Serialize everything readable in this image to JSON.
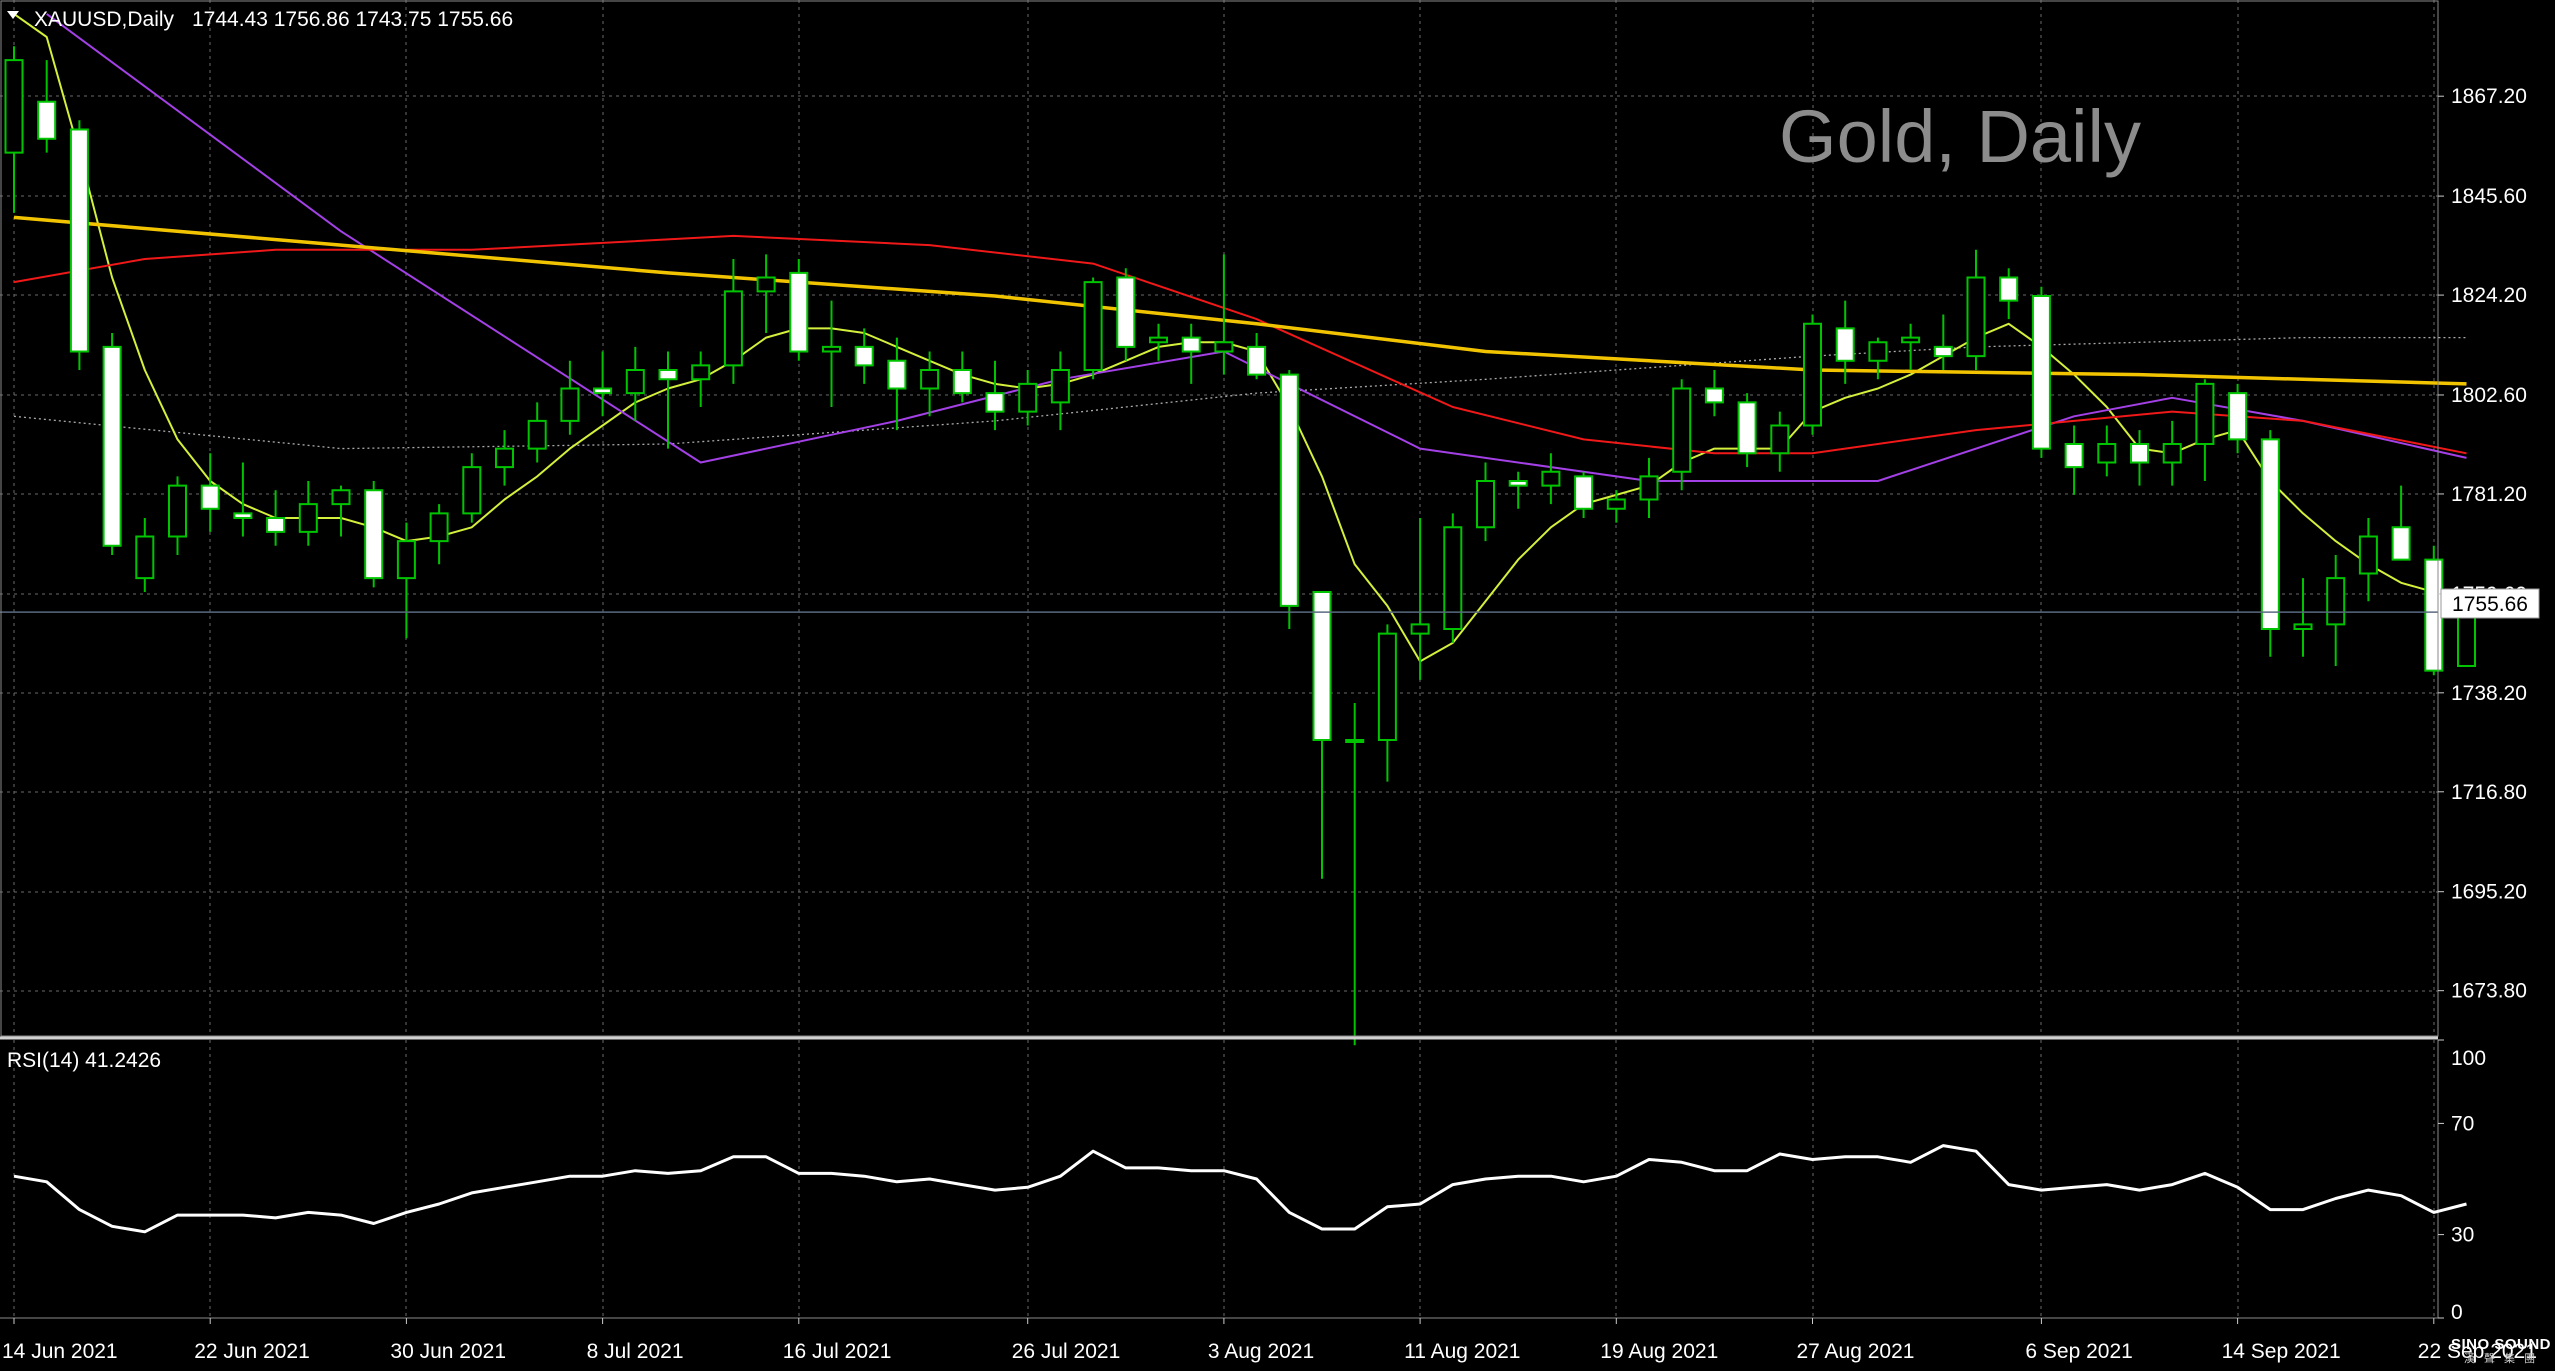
{
  "header": {
    "symbol": "XAUUSD,Daily",
    "ohlc": "1744.43 1756.86 1743.75 1755.66"
  },
  "watermark": "Gold, Daily",
  "rsi_label": "RSI(14) 41.2426",
  "current_price_label": "1755.66",
  "logo": {
    "line1": "SINO SOUND",
    "line2": "漢 聲 集 團"
  },
  "colors": {
    "background": "#000000",
    "grid": "#6a6a6a",
    "candle_up": "#00c400",
    "candle_down_fill": "#ffffff",
    "ma_fast": "#d4ef3c",
    "ma_purple": "#a340e6",
    "ma_red": "#f01818",
    "ma_yellow": "#f2c400",
    "ma_dotted": "#aaaaaa",
    "rsi": "#ffffff",
    "price_line": "#5a6a80"
  },
  "chart_data": [
    {
      "type": "candlestick",
      "title": "XAUUSD,Daily",
      "x_tick_labels": [
        "14 Jun 2021",
        "22 Jun 2021",
        "30 Jun 2021",
        "8 Jul 2021",
        "16 Jul 2021",
        "26 Jul 2021",
        "3 Aug 2021",
        "11 Aug 2021",
        "19 Aug 2021",
        "27 Aug 2021",
        "6 Sep 2021",
        "14 Sep 2021",
        "22 Sep 2021"
      ],
      "x_tick_index": [
        0,
        6,
        12,
        18,
        24,
        31,
        37,
        43,
        49,
        55,
        62,
        68,
        74
      ],
      "y_ticks": [
        1673.8,
        1695.2,
        1716.8,
        1738.2,
        1759.6,
        1781.2,
        1802.6,
        1824.2,
        1845.6,
        1867.2
      ],
      "ylim": [
        1664.0,
        1888.0
      ],
      "last_price": 1755.66,
      "ohlc": [
        [
          1855,
          1878,
          1842,
          1875
        ],
        [
          1866,
          1875,
          1855,
          1858
        ],
        [
          1860,
          1862,
          1808,
          1812
        ],
        [
          1813,
          1816,
          1768,
          1770
        ],
        [
          1763,
          1776,
          1760,
          1772
        ],
        [
          1772,
          1785,
          1768,
          1783
        ],
        [
          1783,
          1790,
          1773,
          1778
        ],
        [
          1777,
          1788,
          1772,
          1776
        ],
        [
          1776,
          1782,
          1770,
          1773
        ],
        [
          1773,
          1784,
          1770,
          1779
        ],
        [
          1779,
          1783,
          1772,
          1782
        ],
        [
          1782,
          1784,
          1761,
          1763
        ],
        [
          1763,
          1775,
          1750,
          1771
        ],
        [
          1771,
          1779,
          1766,
          1777
        ],
        [
          1777,
          1790,
          1775,
          1787
        ],
        [
          1787,
          1795,
          1783,
          1791
        ],
        [
          1791,
          1801,
          1788,
          1797
        ],
        [
          1797,
          1810,
          1794,
          1804
        ],
        [
          1804,
          1812,
          1798,
          1803
        ],
        [
          1803,
          1813,
          1797,
          1808
        ],
        [
          1808,
          1812,
          1791,
          1806
        ],
        [
          1806,
          1812,
          1800,
          1809
        ],
        [
          1809,
          1832,
          1805,
          1825
        ],
        [
          1825,
          1833,
          1816,
          1828
        ],
        [
          1829,
          1832,
          1810,
          1812
        ],
        [
          1812,
          1823,
          1800,
          1813
        ],
        [
          1813,
          1817,
          1805,
          1809
        ],
        [
          1810,
          1815,
          1795,
          1804
        ],
        [
          1804,
          1812,
          1798,
          1808
        ],
        [
          1808,
          1812,
          1801,
          1803
        ],
        [
          1803,
          1810,
          1795,
          1799
        ],
        [
          1799,
          1808,
          1796,
          1805
        ],
        [
          1801,
          1812,
          1795,
          1808
        ],
        [
          1808,
          1828,
          1806,
          1827
        ],
        [
          1828,
          1830,
          1810,
          1813
        ],
        [
          1814,
          1818,
          1810,
          1815
        ],
        [
          1815,
          1818,
          1805,
          1812
        ],
        [
          1812,
          1833,
          1807,
          1814
        ],
        [
          1813,
          1816,
          1806,
          1807
        ],
        [
          1807,
          1808,
          1752,
          1757
        ],
        [
          1760,
          1760,
          1698,
          1728
        ],
        [
          1728,
          1736,
          1662,
          1728
        ],
        [
          1728,
          1753,
          1719,
          1751
        ],
        [
          1751,
          1776,
          1741,
          1753
        ],
        [
          1752,
          1777,
          1749,
          1774
        ],
        [
          1774,
          1788,
          1771,
          1784
        ],
        [
          1784,
          1786,
          1778,
          1783
        ],
        [
          1783,
          1790,
          1779,
          1786
        ],
        [
          1785,
          1786,
          1776,
          1778
        ],
        [
          1778,
          1782,
          1775,
          1780
        ],
        [
          1780,
          1789,
          1776,
          1785
        ],
        [
          1786,
          1806,
          1782,
          1804
        ],
        [
          1804,
          1808,
          1798,
          1801
        ],
        [
          1801,
          1803,
          1787,
          1790
        ],
        [
          1790,
          1799,
          1786,
          1796
        ],
        [
          1796,
          1820,
          1794,
          1818
        ],
        [
          1817,
          1823,
          1805,
          1810
        ],
        [
          1810,
          1815,
          1806,
          1814
        ],
        [
          1814,
          1818,
          1808,
          1815
        ],
        [
          1813,
          1820,
          1808,
          1811
        ],
        [
          1811,
          1834,
          1808,
          1828
        ],
        [
          1828,
          1830,
          1819,
          1823
        ],
        [
          1824,
          1826,
          1789,
          1791
        ],
        [
          1792,
          1796,
          1781,
          1787
        ],
        [
          1788,
          1796,
          1785,
          1792
        ],
        [
          1792,
          1795,
          1783,
          1788
        ],
        [
          1788,
          1797,
          1783,
          1792
        ],
        [
          1792,
          1806,
          1784,
          1805
        ],
        [
          1803,
          1805,
          1790,
          1793
        ],
        [
          1793,
          1795,
          1746,
          1752
        ],
        [
          1752,
          1763,
          1746,
          1753
        ],
        [
          1753,
          1768,
          1744,
          1763
        ],
        [
          1764,
          1776,
          1758,
          1772
        ],
        [
          1774,
          1783,
          1768,
          1767
        ],
        [
          1767,
          1770,
          1742,
          1743
        ],
        [
          1744,
          1757,
          1744,
          1756
        ]
      ],
      "series": [
        {
          "kind": "ma_fast",
          "values": [
            1885,
            1880,
            1855,
            1828,
            1808,
            1793,
            1784,
            1779,
            1776,
            1776,
            1776,
            1774,
            1771,
            1772,
            1774,
            1780,
            1785,
            1791,
            1796,
            1801,
            1804,
            1806,
            1810,
            1815,
            1817,
            1817,
            1816,
            1813,
            1810,
            1807,
            1805,
            1804,
            1805,
            1807,
            1810,
            1813,
            1814,
            1814,
            1812,
            1800,
            1785,
            1766,
            1757,
            1745,
            1749,
            1758,
            1767,
            1774,
            1779,
            1781,
            1783,
            1788,
            1791,
            1791,
            1791,
            1799,
            1802,
            1804,
            1807,
            1811,
            1815,
            1818,
            1813,
            1807,
            1800,
            1791,
            1790,
            1793,
            1795,
            1784,
            1777,
            1771,
            1766,
            1762,
            1760,
            1760
          ]
        },
        {
          "kind": "ma_purple",
          "index": [
            1,
            10,
            21,
            27,
            32,
            37,
            43,
            50,
            56,
            57,
            63,
            66,
            70,
            75
          ],
          "values": [
            1885,
            1838,
            1788,
            1797,
            1806,
            1812,
            1791,
            1784,
            1784,
            1784,
            1798,
            1802,
            1797,
            1789
          ]
        },
        {
          "kind": "ma_red",
          "index": [
            0,
            4,
            8,
            14,
            22,
            28,
            33,
            38,
            44,
            48,
            52,
            55,
            60,
            66,
            70,
            75
          ],
          "values": [
            1827,
            1832,
            1834,
            1834,
            1837,
            1835,
            1831,
            1819,
            1800,
            1793,
            1790,
            1790,
            1795,
            1799,
            1797,
            1790
          ]
        },
        {
          "kind": "ma_yellow",
          "index": [
            0,
            10,
            20,
            30,
            38,
            45,
            55,
            65,
            70,
            75
          ],
          "values": [
            1841,
            1835,
            1829,
            1824,
            1818,
            1812,
            1808,
            1807,
            1806,
            1805
          ]
        },
        {
          "kind": "ma_dotted",
          "index": [
            0,
            10,
            20,
            30,
            38,
            45,
            55,
            60,
            65,
            70,
            75
          ],
          "values": [
            1798,
            1791,
            1792,
            1797,
            1803,
            1806,
            1811,
            1813,
            1814,
            1815,
            1815
          ]
        }
      ]
    },
    {
      "type": "line",
      "title": "RSI(14) 41.2426",
      "y_ticks": [
        0,
        30,
        70,
        100
      ],
      "ylim": [
        0,
        100
      ],
      "values": [
        51,
        49,
        39,
        33,
        31,
        37,
        37,
        37,
        36,
        38,
        37,
        34,
        38,
        41,
        45,
        47,
        49,
        51,
        51,
        53,
        52,
        53,
        58,
        58,
        52,
        52,
        51,
        49,
        50,
        48,
        46,
        47,
        51,
        60,
        54,
        54,
        53,
        53,
        50,
        38,
        32,
        32,
        40,
        41,
        48,
        50,
        51,
        51,
        49,
        51,
        57,
        56,
        53,
        53,
        59,
        57,
        58,
        58,
        56,
        62,
        60,
        48,
        46,
        47,
        48,
        46,
        48,
        52,
        47,
        39,
        39,
        43,
        46,
        44,
        38,
        41
      ]
    }
  ]
}
